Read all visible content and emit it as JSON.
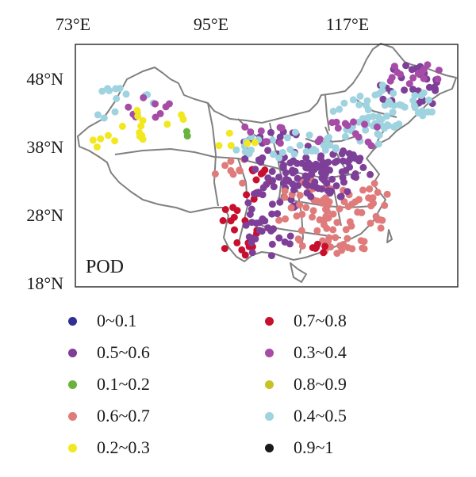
{
  "map": {
    "panel_label": "POD",
    "x_ticks": [
      "73°E",
      "95°E",
      "117°E"
    ],
    "y_ticks": [
      "48°N",
      "38°N",
      "28°N",
      "18°N"
    ]
  },
  "legend": [
    {
      "label": "0~0.1",
      "color": "#2e3192"
    },
    {
      "label": "0.7~0.8",
      "color": "#c8102e"
    },
    {
      "label": "0.5~0.6",
      "color": "#7e3f98"
    },
    {
      "label": "0.3~0.4",
      "color": "#a64ca6"
    },
    {
      "label": "0.1~0.2",
      "color": "#6ab23e"
    },
    {
      "label": "0.8~0.9",
      "color": "#c9c227"
    },
    {
      "label": "0.6~0.7",
      "color": "#e07b7b"
    },
    {
      "label": "0.4~0.5",
      "color": "#9ed3df"
    },
    {
      "label": "0.2~0.3",
      "color": "#f2e81f"
    },
    {
      "label": "0.9~1",
      "color": "#1a1a1a"
    }
  ],
  "colors": {
    "boundary": "#808080",
    "frame": "#333333"
  }
}
